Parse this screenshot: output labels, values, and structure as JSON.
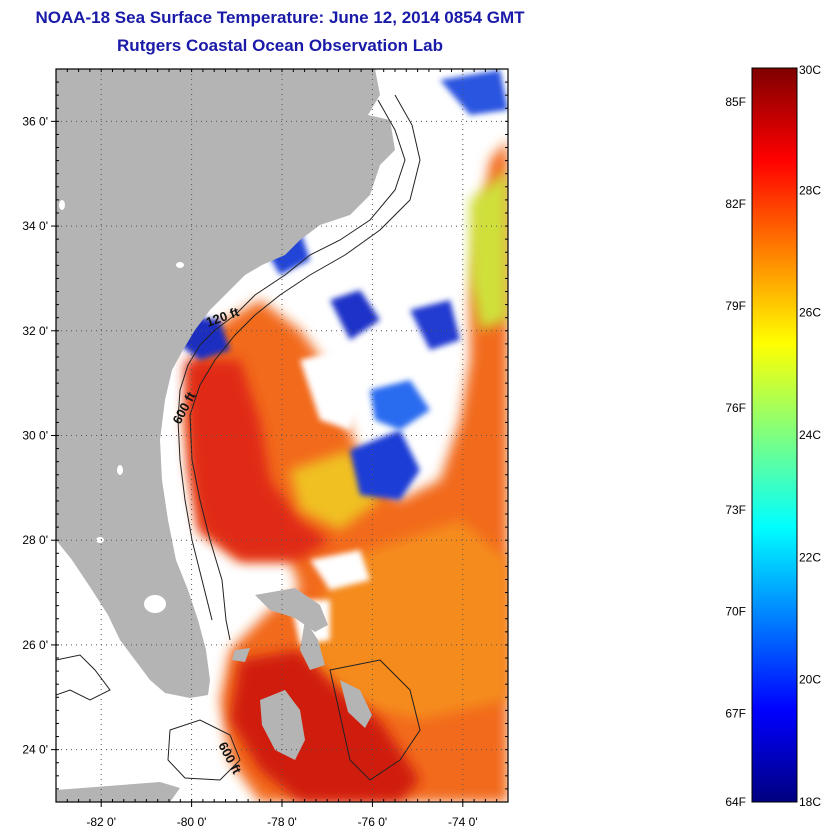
{
  "title": "NOAA-18 Sea Surface Temperature:  June 12, 2014 0854 GMT",
  "subtitle": "Rutgers Coastal Ocean Observation Lab",
  "map": {
    "lat_ticks": [
      {
        "value": 24,
        "label": "24 0'"
      },
      {
        "value": 26,
        "label": "26 0'"
      },
      {
        "value": 28,
        "label": "28 0'"
      },
      {
        "value": 30,
        "label": "30 0'"
      },
      {
        "value": 32,
        "label": "32 0'"
      },
      {
        "value": 34,
        "label": "34 0'"
      },
      {
        "value": 36,
        "label": "36 0'"
      }
    ],
    "lon_ticks": [
      {
        "value": -82,
        "label": "-82 0'"
      },
      {
        "value": -80,
        "label": "-80 0'"
      },
      {
        "value": -78,
        "label": "-78 0'"
      },
      {
        "value": -76,
        "label": "-76 0'"
      },
      {
        "value": -74,
        "label": "-74 0'"
      }
    ],
    "lat_range": [
      23,
      37
    ],
    "lon_range": [
      -83,
      -73
    ],
    "contour_labels": {
      "north": "120 ft",
      "shelf": "600 ft",
      "south": "600 ft"
    },
    "land_color": "#b4b4b4"
  },
  "colorbar": {
    "range_c": [
      18,
      30
    ],
    "celsius_labels": [
      "30C",
      "28C",
      "26C",
      "24C",
      "22C",
      "20C",
      "18C"
    ],
    "fahrenheit_labels": [
      "85F",
      "82F",
      "79F",
      "76F",
      "73F",
      "70F",
      "67F",
      "64F"
    ],
    "colormap": "jet"
  }
}
